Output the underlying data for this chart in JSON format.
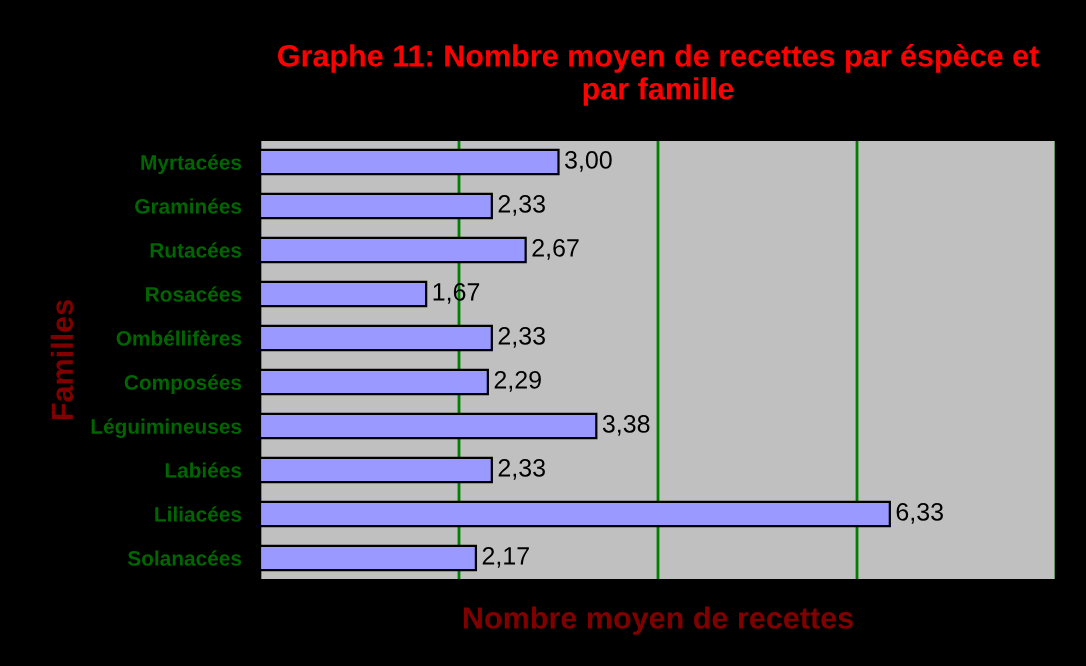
{
  "chart_data": {
    "type": "bar",
    "orientation": "horizontal",
    "title": "Graphe 11: Nombre moyen de recettes par éspèce et\npar famille",
    "xlabel": "Nombre moyen de recettes",
    "ylabel": "Familles",
    "categories": [
      "Myrtacées",
      "Graminées",
      "Rutacées",
      "Rosacées",
      "Ombéllifères",
      "Composées",
      "Léguimineuses",
      "Labiées",
      "Liliacées",
      "Solanacées"
    ],
    "values": [
      3.0,
      2.33,
      2.67,
      1.67,
      2.33,
      2.29,
      3.38,
      2.33,
      6.33,
      2.17
    ],
    "value_labels": [
      "3,00",
      "2,33",
      "2,67",
      "1,67",
      "2,33",
      "2,29",
      "3,38",
      "2,33",
      "6,33",
      "2,17"
    ],
    "color": "#9999ff",
    "xlim": [
      0,
      8
    ],
    "xticks": [
      {
        "value": 0,
        "label": null
      },
      {
        "value": 2,
        "label": null
      },
      {
        "value": 4,
        "label": null
      },
      {
        "value": 6,
        "label": null
      },
      {
        "value": 8,
        "label": null
      }
    ],
    "grid": "x",
    "tick_labels": "y",
    "legend": false
  }
}
